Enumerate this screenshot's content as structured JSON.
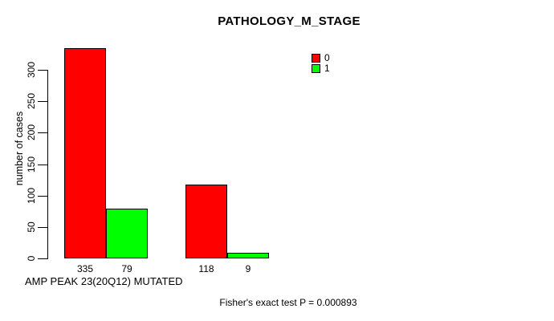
{
  "chart_data": {
    "type": "bar",
    "title": "PATHOLOGY_M_STAGE",
    "xlabel": "AMP PEAK 23(20Q12) MUTATED",
    "ylabel": "number of cases",
    "ylim": [
      0,
      300
    ],
    "yticks": [
      0,
      50,
      100,
      150,
      200,
      250,
      300
    ],
    "categories": [
      "",
      ""
    ],
    "series": [
      {
        "name": "0",
        "color": "#ff0000",
        "values": [
          335,
          118
        ]
      },
      {
        "name": "1",
        "color": "#00ff00",
        "values": [
          79,
          9
        ]
      }
    ],
    "bar_value_labels": [
      [
        335,
        79
      ],
      [
        118,
        9
      ]
    ],
    "legend": {
      "position": "top-right",
      "entries": [
        "0",
        "1"
      ]
    },
    "grid": false,
    "annotation": "Fisher's exact test P = 0.000893"
  }
}
